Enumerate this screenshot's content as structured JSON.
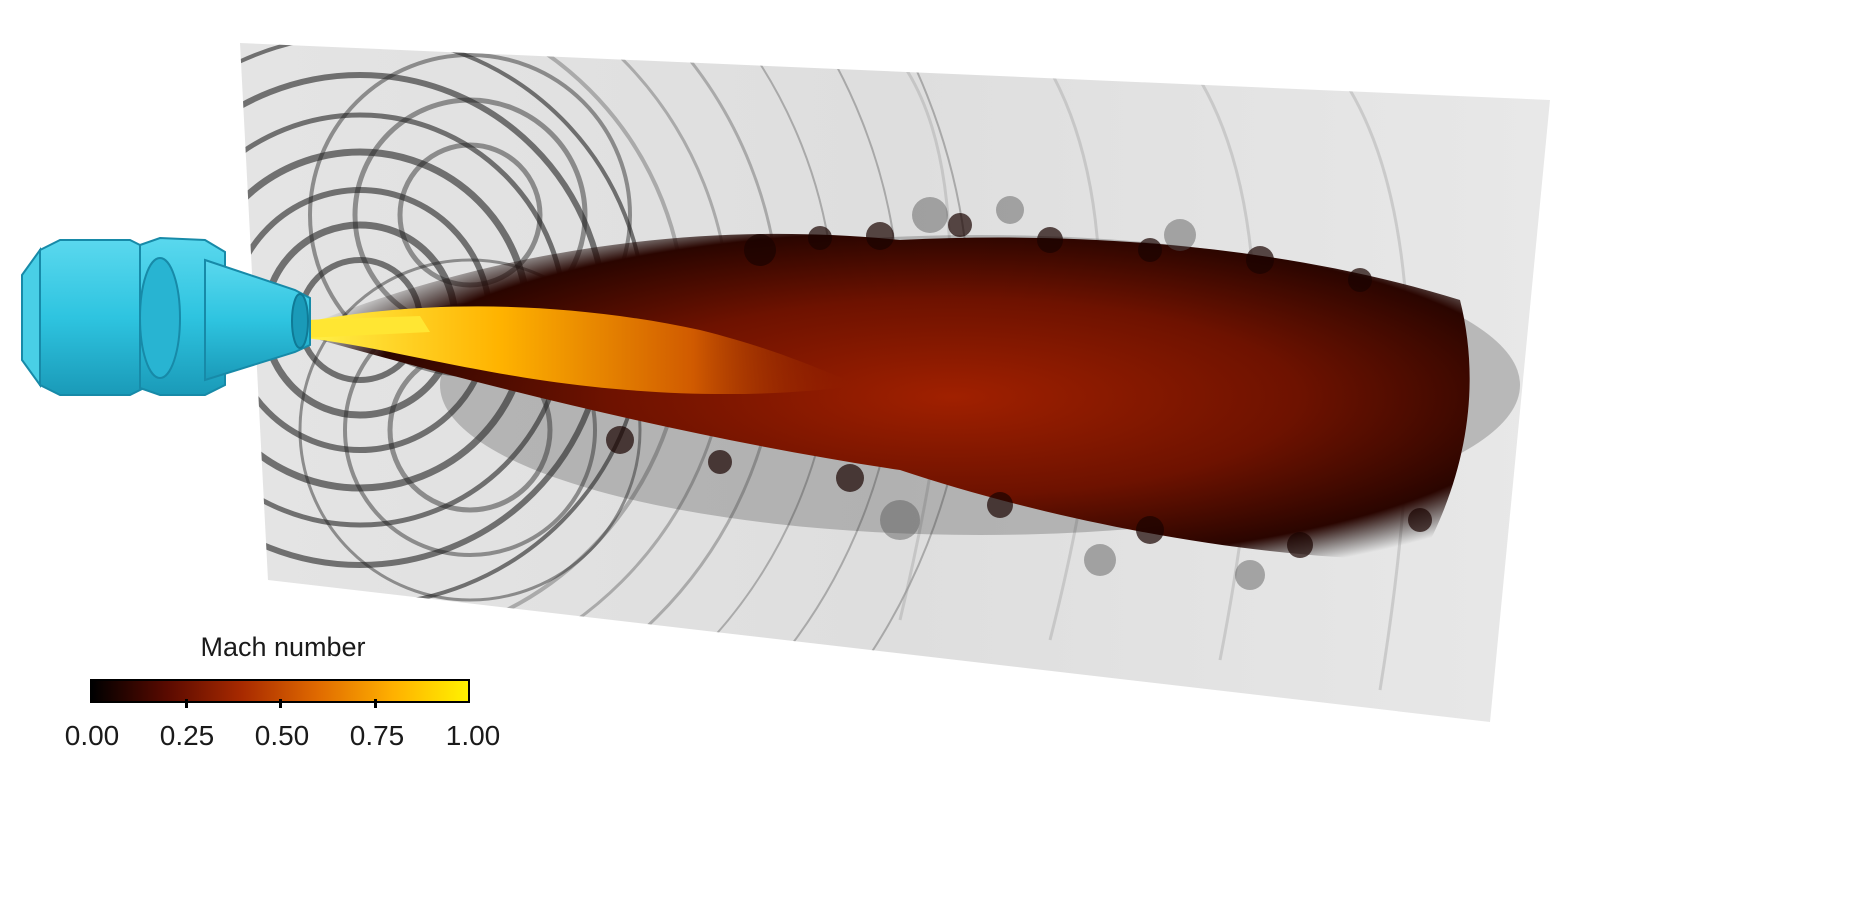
{
  "colorbar": {
    "title": "Mach number",
    "colormap": [
      "#000000",
      "#5a0a00",
      "#a82a00",
      "#e06a00",
      "#ffb000",
      "#fff200"
    ],
    "ticks": [
      "0.00",
      "0.25",
      "0.50",
      "0.75",
      "1.00"
    ]
  },
  "colors": {
    "nozzle": "#2ec4e0",
    "nozzle_dark": "#1a9ab8",
    "background_field": "#d8d8d8",
    "jet_core": "#ffd21a",
    "jet_plume": "#8c1a00"
  },
  "icons": {
    "nozzle": "nozzle-icon"
  }
}
